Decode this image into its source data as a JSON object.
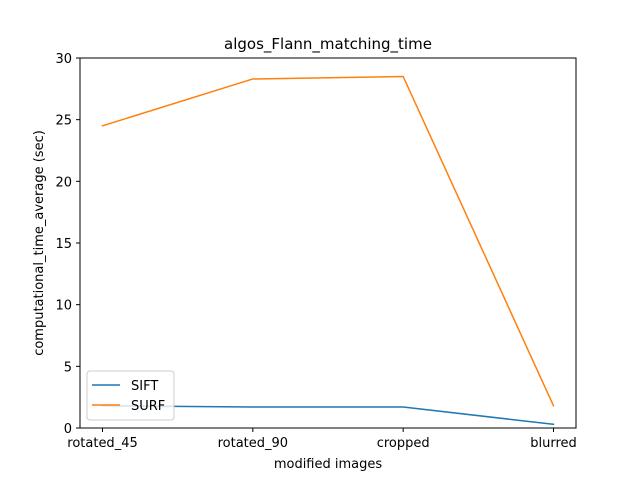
{
  "chart_data": {
    "type": "line",
    "title": "algos_Flann_matching_time",
    "xlabel": "modified images",
    "ylabel": "computational_time_average (sec)",
    "categories": [
      "rotated_45",
      "rotated_90",
      "cropped",
      "blurred"
    ],
    "ylim": [
      0,
      30
    ],
    "yticks": [
      0,
      5,
      10,
      15,
      20,
      25,
      30
    ],
    "grid": false,
    "legend_position": "lower-left",
    "series": [
      {
        "name": "SIFT",
        "color": "#1f77b4",
        "values": [
          1.8,
          1.7,
          1.7,
          0.3
        ]
      },
      {
        "name": "SURF",
        "color": "#ff7f0e",
        "values": [
          24.5,
          28.3,
          28.5,
          1.8
        ]
      }
    ]
  }
}
